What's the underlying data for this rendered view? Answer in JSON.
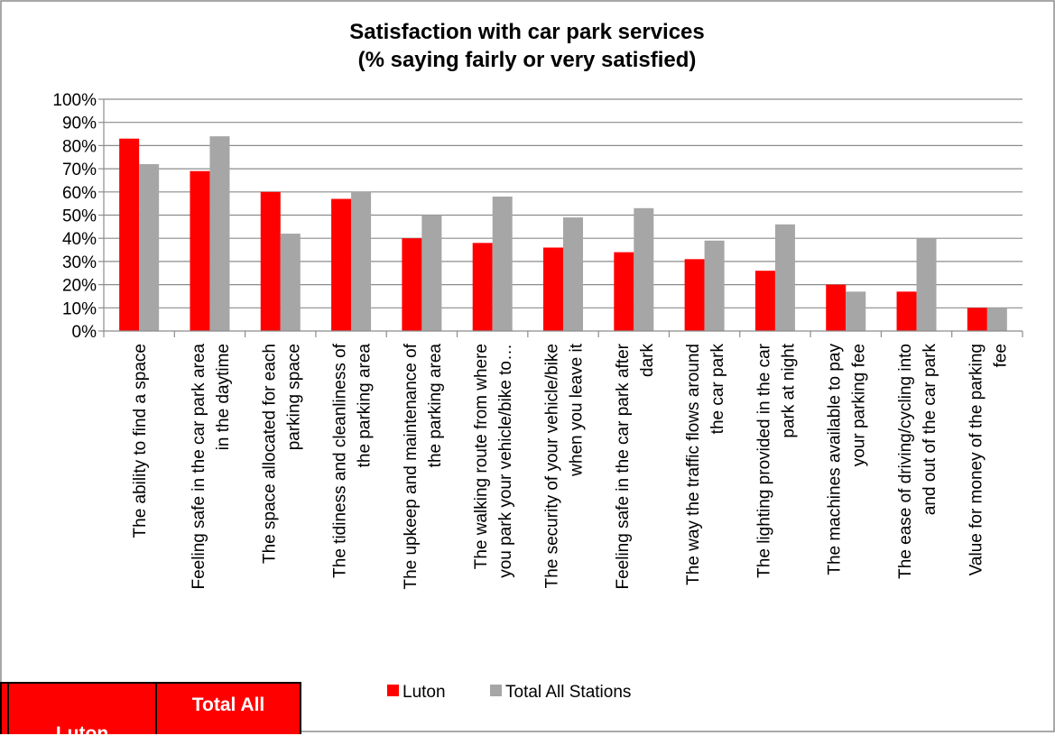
{
  "chart_data": {
    "type": "bar",
    "title": [
      "Satisfaction with car park services",
      "(% saying fairly or very satisfied)"
    ],
    "xlabel": "",
    "ylabel": "",
    "ylim": [
      0,
      100
    ],
    "y_tick_labels": [
      "0%",
      "10%",
      "20%",
      "30%",
      "40%",
      "50%",
      "60%",
      "70%",
      "80%",
      "90%",
      "100%"
    ],
    "grid": true,
    "legend_position": "bottom",
    "categories": [
      [
        "The ability to find a space"
      ],
      [
        "Feeling safe in the car park area",
        "in the daytime"
      ],
      [
        "The space allocated for each",
        "parking space"
      ],
      [
        "The tidiness and cleanliness of",
        "the parking area"
      ],
      [
        "The upkeep and maintenance of",
        "the parking area"
      ],
      [
        "The walking route from where",
        "you park your vehicle/bike to…"
      ],
      [
        "The security of your vehicle/bike",
        "when you leave it"
      ],
      [
        "Feeling safe in the car park after",
        "dark"
      ],
      [
        "The way the traffic flows around",
        "the car park"
      ],
      [
        "The lighting provided in the car",
        "park at night"
      ],
      [
        "The machines available to pay",
        "your parking fee"
      ],
      [
        "The ease of driving/cycling into",
        "and out of the car park"
      ],
      [
        "Value for money of the parking",
        "fee"
      ]
    ],
    "series": [
      {
        "name": "Luton",
        "color": "#ff0000",
        "values": [
          83,
          69,
          60,
          57,
          40,
          38,
          36,
          34,
          31,
          26,
          20,
          17,
          10
        ]
      },
      {
        "name": "Total All Stations",
        "color": "#a6a6a6",
        "values": [
          72,
          84,
          42,
          60,
          50,
          58,
          49,
          53,
          39,
          46,
          17,
          40,
          10
        ]
      }
    ]
  },
  "table_snippet": {
    "col_luton": "Luton",
    "col_total": "Total All"
  }
}
